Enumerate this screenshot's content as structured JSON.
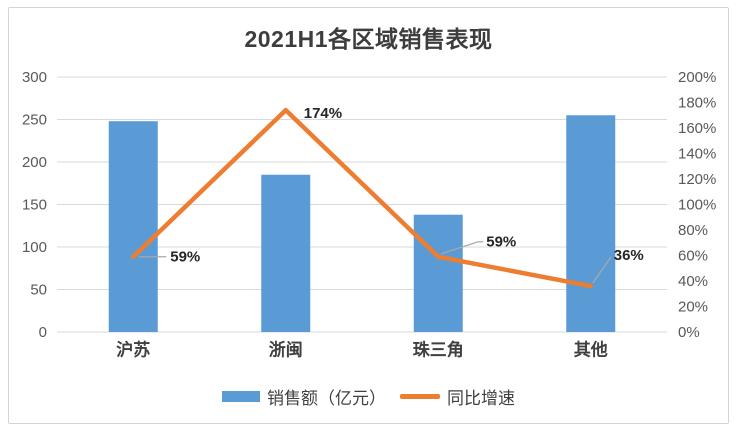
{
  "chart_data": {
    "type": "combo-bar-line",
    "title": "2021H1各区域销售表现",
    "categories": [
      "沪苏",
      "浙闽",
      "珠三角",
      "其他"
    ],
    "series": [
      {
        "name": "销售额（亿元）",
        "type": "bar",
        "axis": "left",
        "values": [
          248,
          185,
          138,
          255
        ],
        "color": "#5B9BD5"
      },
      {
        "name": "同比增速",
        "type": "line",
        "axis": "right",
        "values": [
          59,
          174,
          59,
          36
        ],
        "data_labels": [
          "59%",
          "174%",
          "59%",
          "36%"
        ],
        "color": "#ED7D31"
      }
    ],
    "left_axis": {
      "min": 0,
      "max": 300,
      "step": 50,
      "ticks": [
        "0",
        "50",
        "100",
        "150",
        "200",
        "250",
        "300"
      ]
    },
    "right_axis": {
      "min": 0,
      "max": 200,
      "step": 20,
      "ticks": [
        "0%",
        "20%",
        "40%",
        "60%",
        "80%",
        "100%",
        "120%",
        "140%",
        "160%",
        "180%",
        "200%"
      ]
    },
    "grid": true,
    "legend_position": "bottom"
  },
  "colors": {
    "bar": "#5B9BD5",
    "line": "#ED7D31",
    "gridline": "#d9d9d9",
    "axis_tick_text": "#595959",
    "category_text": "#404040",
    "data_label_text": "#262626",
    "leader_line": "#a9a9a9",
    "title_text": "#3d3d3d"
  }
}
